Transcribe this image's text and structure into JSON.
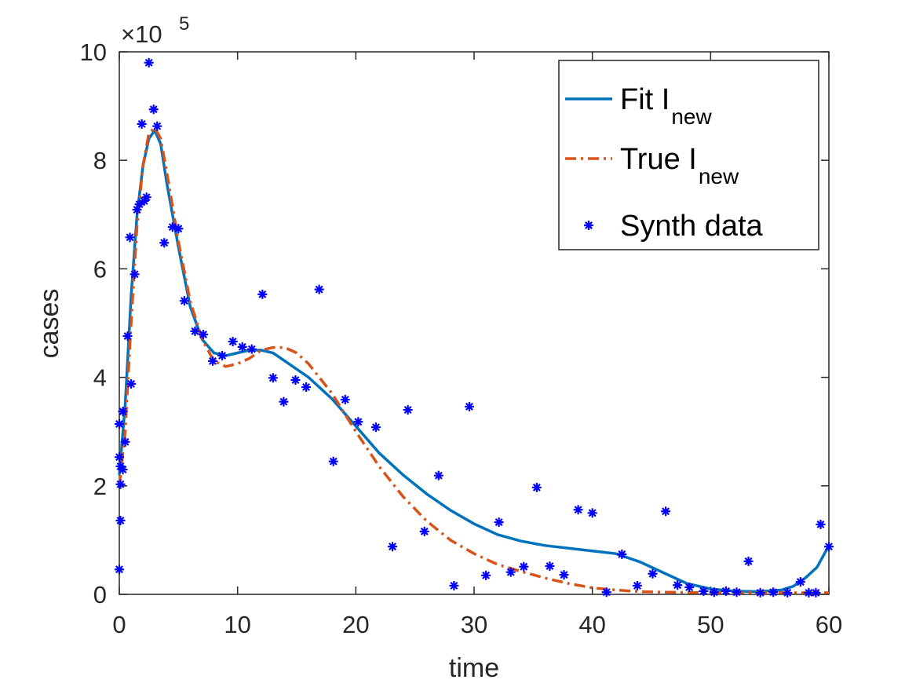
{
  "chart_data": {
    "type": "line",
    "xlabel": "time",
    "ylabel": "cases",
    "y_multiplier": "×10",
    "y_multiplier_exponent": 5,
    "xlim": [
      0,
      60
    ],
    "ylim": [
      0,
      10
    ],
    "xticks": [
      0,
      10,
      20,
      30,
      40,
      50,
      60
    ],
    "yticks": [
      0,
      2,
      4,
      6,
      8,
      10
    ],
    "grid": false,
    "legend_position": "upper right",
    "series": [
      {
        "name": "Fit I",
        "name_subscript": "new",
        "color": "#0072bd",
        "mode": "line",
        "style": "solid",
        "x": [
          0,
          0.5,
          1,
          1.5,
          2,
          2.5,
          3,
          3.5,
          4,
          5,
          6,
          7,
          8,
          9,
          10,
          11,
          12,
          13,
          14,
          16,
          18,
          20,
          22,
          24,
          26,
          28,
          30,
          32,
          34,
          36,
          38,
          40,
          42,
          44,
          46,
          48,
          50,
          52,
          54,
          56,
          57,
          58,
          59,
          60
        ],
        "values": [
          2.2,
          3.5,
          5.5,
          7.0,
          7.9,
          8.4,
          8.55,
          8.3,
          7.6,
          6.4,
          5.3,
          4.7,
          4.45,
          4.4,
          4.45,
          4.5,
          4.5,
          4.45,
          4.3,
          4.0,
          3.6,
          3.1,
          2.6,
          2.2,
          1.85,
          1.55,
          1.3,
          1.1,
          0.98,
          0.9,
          0.85,
          0.8,
          0.75,
          0.6,
          0.4,
          0.2,
          0.1,
          0.06,
          0.05,
          0.08,
          0.15,
          0.3,
          0.5,
          0.9
        ]
      },
      {
        "name": "True I",
        "name_subscript": "new",
        "color": "#d95319",
        "mode": "line",
        "style": "dashdot",
        "x": [
          0,
          0.5,
          1,
          1.5,
          2,
          2.5,
          3,
          3.5,
          4,
          5,
          6,
          7,
          8,
          9,
          10,
          11,
          12,
          13,
          14,
          15,
          16,
          18,
          20,
          22,
          24,
          26,
          28,
          30,
          32,
          34,
          36,
          38,
          40,
          42,
          44,
          46,
          50,
          55,
          60
        ],
        "values": [
          2.0,
          3.0,
          5.0,
          6.8,
          7.9,
          8.5,
          8.6,
          8.4,
          7.8,
          6.5,
          5.4,
          4.7,
          4.3,
          4.2,
          4.25,
          4.35,
          4.5,
          4.55,
          4.55,
          4.45,
          4.25,
          3.7,
          3.0,
          2.35,
          1.8,
          1.35,
          1.0,
          0.75,
          0.55,
          0.42,
          0.3,
          0.2,
          0.12,
          0.08,
          0.05,
          0.04,
          0.03,
          0.03,
          0.03
        ]
      },
      {
        "name": "Synth data",
        "color": "#0000ff",
        "mode": "markers",
        "marker": "*",
        "x": [
          0,
          0,
          0,
          0.1,
          0.1,
          0.1,
          0.3,
          0.3,
          0.5,
          0.7,
          0.9,
          1.0,
          1.3,
          1.5,
          1.7,
          1.9,
          2.1,
          2.3,
          2.5,
          2.9,
          3.2,
          3.8,
          4.5,
          5.0,
          5.5,
          6.4,
          7.1,
          7.9,
          8.7,
          9.6,
          10.4,
          11.2,
          12.1,
          13.0,
          13.9,
          14.9,
          15.8,
          16.9,
          18.1,
          19.1,
          20.2,
          21.7,
          23.1,
          24.4,
          25.8,
          27.0,
          28.3,
          29.6,
          31.0,
          32.1,
          33.1,
          34.2,
          35.3,
          36.4,
          37.6,
          38.8,
          40.0,
          41.2,
          42.5,
          43.8,
          45.1,
          46.2,
          47.2,
          48.2,
          49.4,
          50.3,
          51.3,
          52.2,
          53.2,
          54.2,
          55.3,
          56.5,
          57.6,
          58.3,
          58.9,
          59.3,
          60
        ],
        "values": [
          0.46,
          2.53,
          3.14,
          2.36,
          2.03,
          1.36,
          2.3,
          3.37,
          2.81,
          4.76,
          6.58,
          3.88,
          5.9,
          7.09,
          7.19,
          8.67,
          7.25,
          7.32,
          9.8,
          8.94,
          8.63,
          6.48,
          6.77,
          6.74,
          5.41,
          4.85,
          4.79,
          4.3,
          4.4,
          4.66,
          4.56,
          4.52,
          5.53,
          3.99,
          3.55,
          3.95,
          3.82,
          5.62,
          2.45,
          3.59,
          3.18,
          3.08,
          0.88,
          3.4,
          1.16,
          2.19,
          0.16,
          3.46,
          0.35,
          1.33,
          0.41,
          0.51,
          1.97,
          0.52,
          0.36,
          1.56,
          1.5,
          0.04,
          0.74,
          0.16,
          0.38,
          1.53,
          0.17,
          0.13,
          0.06,
          0.04,
          0.06,
          0.04,
          0.61,
          0.03,
          0.04,
          0.03,
          0.23,
          0.03,
          0.03,
          1.29,
          0.88
        ]
      }
    ]
  }
}
